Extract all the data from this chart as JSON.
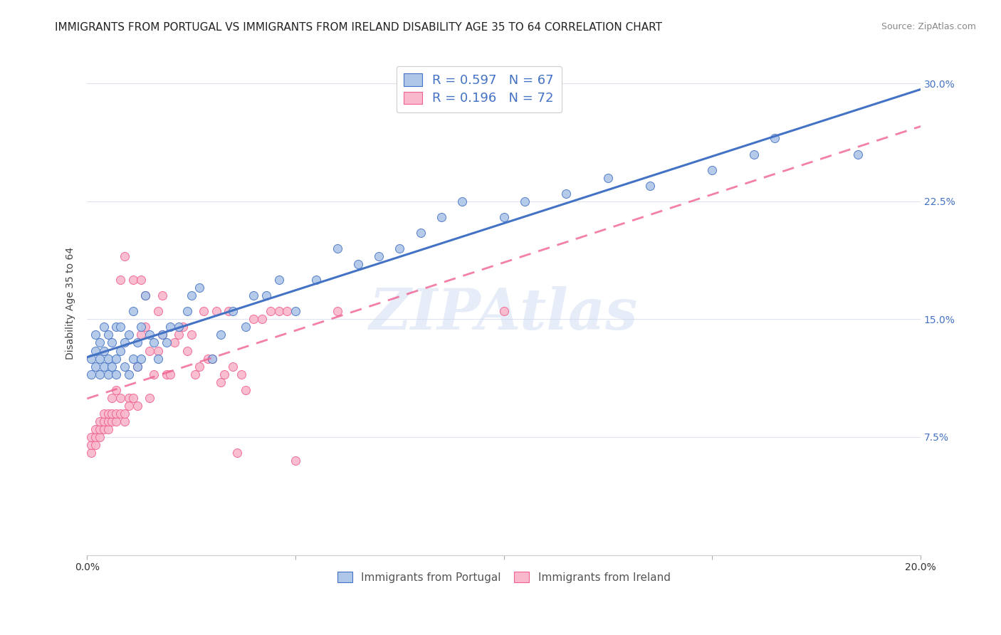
{
  "title": "IMMIGRANTS FROM PORTUGAL VS IMMIGRANTS FROM IRELAND DISABILITY AGE 35 TO 64 CORRELATION CHART",
  "source": "Source: ZipAtlas.com",
  "ylabel": "Disability Age 35 to 64",
  "xlim": [
    0.0,
    0.2
  ],
  "ylim": [
    0.0,
    0.32
  ],
  "portugal_R": 0.597,
  "portugal_N": 67,
  "ireland_R": 0.196,
  "ireland_N": 72,
  "portugal_color": "#aec6e8",
  "ireland_color": "#f9b8cb",
  "portugal_line_color": "#4472c4",
  "ireland_line_color": "#f06090",
  "background_color": "#ffffff",
  "grid_color": "#dde3ef",
  "watermark": "ZIPAtlas",
  "title_fontsize": 11,
  "label_fontsize": 10,
  "tick_fontsize": 10,
  "portugal_x": [
    0.001,
    0.001,
    0.002,
    0.002,
    0.002,
    0.003,
    0.003,
    0.003,
    0.004,
    0.004,
    0.004,
    0.005,
    0.005,
    0.005,
    0.006,
    0.006,
    0.007,
    0.007,
    0.007,
    0.008,
    0.008,
    0.009,
    0.009,
    0.01,
    0.01,
    0.011,
    0.011,
    0.012,
    0.012,
    0.013,
    0.013,
    0.014,
    0.015,
    0.016,
    0.017,
    0.018,
    0.019,
    0.02,
    0.022,
    0.024,
    0.025,
    0.027,
    0.03,
    0.032,
    0.035,
    0.038,
    0.04,
    0.043,
    0.046,
    0.05,
    0.055,
    0.06,
    0.065,
    0.07,
    0.075,
    0.08,
    0.085,
    0.09,
    0.1,
    0.105,
    0.115,
    0.125,
    0.135,
    0.15,
    0.16,
    0.165,
    0.185
  ],
  "portugal_y": [
    0.115,
    0.125,
    0.13,
    0.12,
    0.14,
    0.115,
    0.125,
    0.135,
    0.12,
    0.13,
    0.145,
    0.115,
    0.125,
    0.14,
    0.12,
    0.135,
    0.115,
    0.125,
    0.145,
    0.13,
    0.145,
    0.12,
    0.135,
    0.115,
    0.14,
    0.125,
    0.155,
    0.12,
    0.135,
    0.125,
    0.145,
    0.165,
    0.14,
    0.135,
    0.125,
    0.14,
    0.135,
    0.145,
    0.145,
    0.155,
    0.165,
    0.17,
    0.125,
    0.14,
    0.155,
    0.145,
    0.165,
    0.165,
    0.175,
    0.155,
    0.175,
    0.195,
    0.185,
    0.19,
    0.195,
    0.205,
    0.215,
    0.225,
    0.215,
    0.225,
    0.23,
    0.24,
    0.235,
    0.245,
    0.255,
    0.265,
    0.255
  ],
  "ireland_x": [
    0.001,
    0.001,
    0.001,
    0.002,
    0.002,
    0.002,
    0.003,
    0.003,
    0.003,
    0.004,
    0.004,
    0.004,
    0.005,
    0.005,
    0.005,
    0.006,
    0.006,
    0.006,
    0.007,
    0.007,
    0.007,
    0.008,
    0.008,
    0.008,
    0.009,
    0.009,
    0.009,
    0.01,
    0.01,
    0.011,
    0.011,
    0.012,
    0.012,
    0.013,
    0.013,
    0.014,
    0.014,
    0.015,
    0.015,
    0.016,
    0.017,
    0.017,
    0.018,
    0.018,
    0.019,
    0.02,
    0.021,
    0.022,
    0.023,
    0.024,
    0.025,
    0.026,
    0.027,
    0.028,
    0.029,
    0.03,
    0.031,
    0.032,
    0.033,
    0.034,
    0.035,
    0.036,
    0.037,
    0.038,
    0.04,
    0.042,
    0.044,
    0.046,
    0.048,
    0.05,
    0.06,
    0.1
  ],
  "ireland_y": [
    0.065,
    0.07,
    0.075,
    0.07,
    0.075,
    0.08,
    0.075,
    0.08,
    0.085,
    0.08,
    0.085,
    0.09,
    0.08,
    0.085,
    0.09,
    0.085,
    0.09,
    0.1,
    0.085,
    0.09,
    0.105,
    0.09,
    0.1,
    0.175,
    0.085,
    0.09,
    0.19,
    0.1,
    0.095,
    0.1,
    0.175,
    0.12,
    0.095,
    0.175,
    0.14,
    0.145,
    0.165,
    0.13,
    0.1,
    0.115,
    0.13,
    0.155,
    0.14,
    0.165,
    0.115,
    0.115,
    0.135,
    0.14,
    0.145,
    0.13,
    0.14,
    0.115,
    0.12,
    0.155,
    0.125,
    0.125,
    0.155,
    0.11,
    0.115,
    0.155,
    0.12,
    0.065,
    0.115,
    0.105,
    0.15,
    0.15,
    0.155,
    0.155,
    0.155,
    0.06,
    0.155,
    0.155
  ]
}
